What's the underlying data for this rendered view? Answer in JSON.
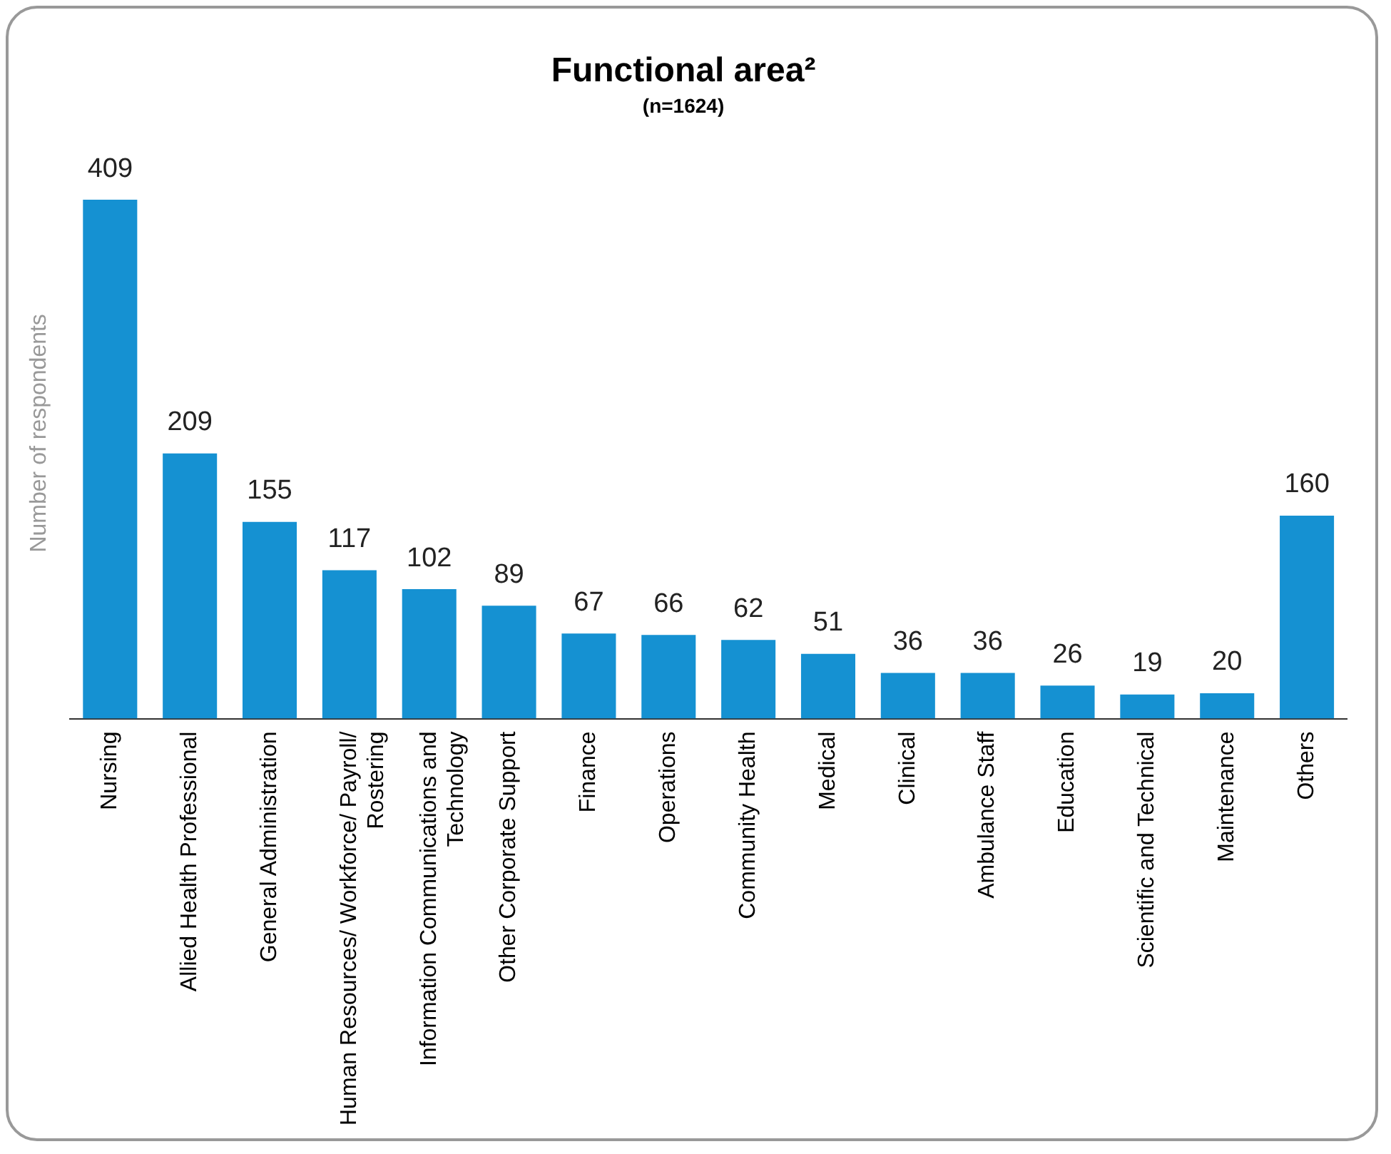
{
  "chart_data": {
    "type": "bar",
    "title": "Functional area²",
    "subtitle": "(n=1624)",
    "ylabel": "Number of respondents",
    "categories": [
      "Nursing",
      "Allied Health Professional",
      "General Administration",
      "Human Resources/ Workforce/ Payroll/ Rostering",
      "Information Communications and Technology",
      "Other Corporate Support",
      "Finance",
      "Operations",
      "Community Health",
      "Medical",
      "Clinical",
      "Ambulance Staff",
      "Education",
      "Scientific and Technical",
      "Maintenance",
      "Others"
    ],
    "values": [
      409,
      209,
      155,
      117,
      102,
      89,
      67,
      66,
      62,
      51,
      36,
      36,
      26,
      19,
      20,
      160
    ],
    "color": "#1591d2",
    "data_labels": true,
    "grid": false,
    "legend": false,
    "tick_labels": "x"
  }
}
